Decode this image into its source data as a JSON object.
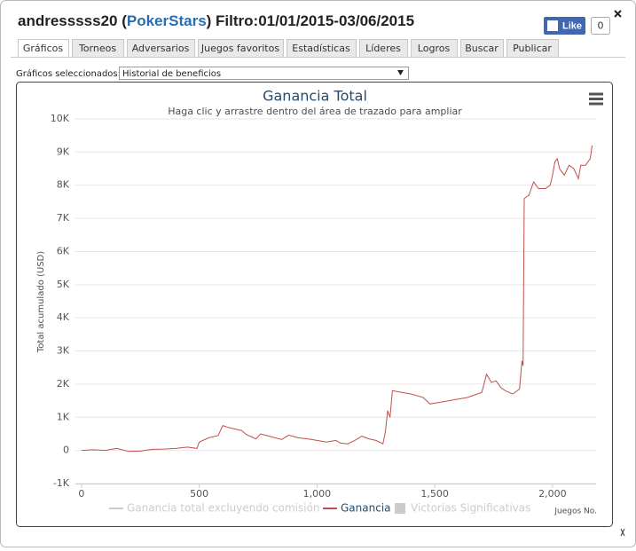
{
  "header": {
    "user": "andresssss20 (",
    "site": "PokerStars",
    "filter": ") Filtro:01/01/2015-03/06/2015",
    "like": "Like",
    "like_count": "0"
  },
  "tabs": [
    "Gráficos",
    "Torneos",
    "Adversarios",
    "Juegos favoritos",
    "Estadísticas",
    "Líderes",
    "Logros",
    "Buscar",
    "Publicar"
  ],
  "selector": {
    "label": "Gráficos seleccionados:",
    "value": "Historial de beneficios"
  },
  "chart_data": {
    "type": "line",
    "title": "Ganancia Total",
    "subtitle": "Haga clic y arrastre dentro del área de trazado para ampliar",
    "y_label": "Total acumulado (USD)",
    "x_label": "Juegos No.",
    "xlim": [
      -26,
      2185
    ],
    "xticks": [
      0,
      500,
      {
        "value": 1000,
        "label": "1,000"
      },
      {
        "value": 1500,
        "label": "1,500"
      },
      {
        "value": 2000,
        "label": "2,000"
      }
    ],
    "ylim": [
      -1000,
      10000
    ],
    "yticks": [
      {
        "value": -1000,
        "label": "-1K"
      },
      0,
      {
        "value": 1000,
        "label": "1K"
      },
      {
        "value": 2000,
        "label": "2K"
      },
      {
        "value": 3000,
        "label": "3K"
      },
      {
        "value": 4000,
        "label": "4K"
      },
      {
        "value": 5000,
        "label": "5K"
      },
      {
        "value": 6000,
        "label": "6K"
      },
      {
        "value": 7000,
        "label": "7K"
      },
      {
        "value": 8000,
        "label": "8K"
      },
      {
        "value": 9000,
        "label": "9K"
      },
      {
        "value": 10000,
        "label": "10K"
      }
    ],
    "grid": true,
    "series": [
      {
        "name": "Ganancia total excluyendo comisión",
        "color": "#cccccc",
        "visible": false
      },
      {
        "name": "Ganancia",
        "color": "#c0504d",
        "visible": true,
        "x": [
          0,
          50,
          100,
          150,
          200,
          250,
          300,
          350,
          400,
          450,
          490,
          500,
          540,
          580,
          600,
          620,
          650,
          680,
          700,
          740,
          760,
          800,
          850,
          880,
          920,
          960,
          1000,
          1040,
          1080,
          1100,
          1130,
          1160,
          1190,
          1220,
          1250,
          1280,
          1290,
          1300,
          1310,
          1320,
          1360,
          1400,
          1450,
          1480,
          1520,
          1560,
          1600,
          1640,
          1680,
          1700,
          1720,
          1740,
          1760,
          1780,
          1800,
          1830,
          1860,
          1870,
          1875,
          1880,
          1900,
          1920,
          1940,
          1970,
          1990,
          2000,
          2010,
          2020,
          2030,
          2050,
          2070,
          2090,
          2110,
          2120,
          2140,
          2160,
          2168
        ],
        "values": [
          0,
          20,
          0,
          60,
          -30,
          -20,
          30,
          40,
          60,
          100,
          60,
          250,
          380,
          450,
          750,
          700,
          650,
          600,
          480,
          350,
          500,
          420,
          330,
          460,
          380,
          350,
          300,
          250,
          300,
          220,
          200,
          300,
          430,
          350,
          300,
          200,
          550,
          1200,
          1000,
          1800,
          1750,
          1700,
          1600,
          1400,
          1450,
          1500,
          1550,
          1600,
          1700,
          1750,
          2300,
          2050,
          2100,
          1900,
          1800,
          1700,
          1850,
          2700,
          2550,
          7600,
          7700,
          8100,
          7900,
          7900,
          8000,
          8300,
          8700,
          8800,
          8500,
          8300,
          8600,
          8500,
          8200,
          8600,
          8600,
          8800,
          9200
        ]
      },
      {
        "name": "Victorias Significativas",
        "color": "#cccccc",
        "visible": false
      }
    ]
  }
}
